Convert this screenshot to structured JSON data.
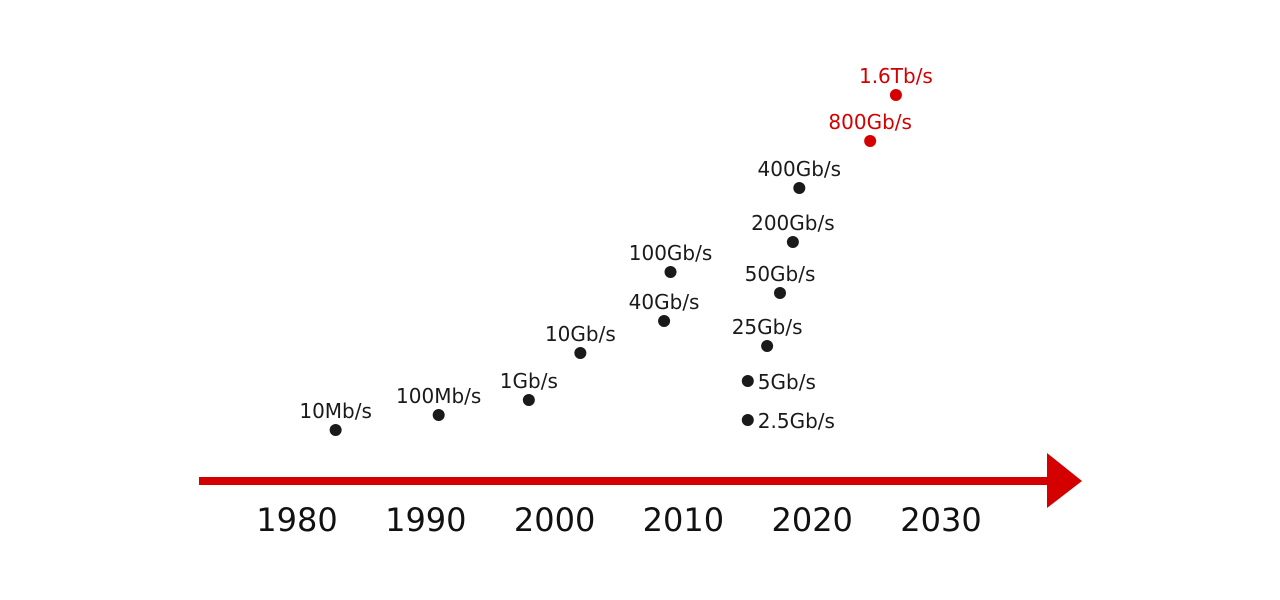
{
  "chart_data": {
    "type": "scatter",
    "title": "",
    "xlabel": "",
    "ylabel": "",
    "x_ticks": [
      "1980",
      "1990",
      "2000",
      "2010",
      "2020",
      "2030"
    ],
    "xlim": [
      1977,
      2040
    ],
    "colors": {
      "past": "#1a1a1a",
      "future": "#d40000",
      "axis": "#d40000"
    },
    "points": [
      {
        "label": "10Mb/s",
        "year": 1983,
        "highlight": false
      },
      {
        "label": "100Mb/s",
        "year": 1991,
        "highlight": false
      },
      {
        "label": "1Gb/s",
        "year": 1998,
        "highlight": false
      },
      {
        "label": "10Gb/s",
        "year": 2002,
        "highlight": false
      },
      {
        "label": "40Gb/s",
        "year": 2008.5,
        "highlight": false
      },
      {
        "label": "100Gb/s",
        "year": 2009,
        "highlight": false
      },
      {
        "label": "2.5Gb/s",
        "year": 2015,
        "highlight": false
      },
      {
        "label": "5Gb/s",
        "year": 2015,
        "highlight": false
      },
      {
        "label": "25Gb/s",
        "year": 2016.5,
        "highlight": false
      },
      {
        "label": "50Gb/s",
        "year": 2017.5,
        "highlight": false
      },
      {
        "label": "200Gb/s",
        "year": 2018.5,
        "highlight": false
      },
      {
        "label": "400Gb/s",
        "year": 2019,
        "highlight": false
      },
      {
        "label": "800Gb/s",
        "year": 2024.5,
        "highlight": true
      },
      {
        "label": "1.6Tb/s",
        "year": 2026.5,
        "highlight": true
      }
    ]
  }
}
